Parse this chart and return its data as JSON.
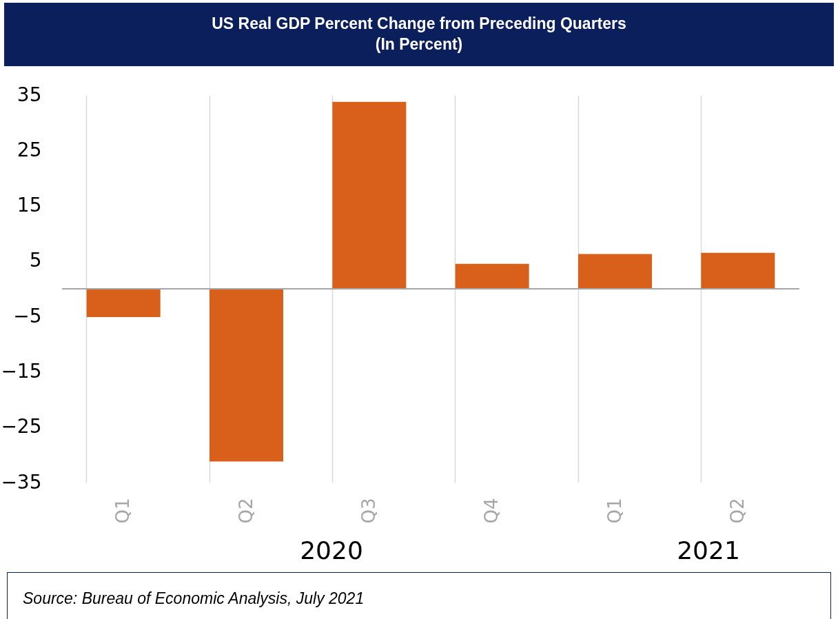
{
  "chart_data": {
    "type": "bar",
    "title": "US Real GDP Percent Change from Preceding Quarters\n(In Percent)",
    "categories": [
      "Q1",
      "Q2",
      "Q3",
      "Q4",
      "Q1",
      "Q2"
    ],
    "values": [
      -5.1,
      -31.2,
      33.8,
      4.5,
      6.3,
      6.5
    ],
    "color": "#d9601a",
    "ylim": [
      -35,
      35
    ],
    "yticks": [
      -35,
      -25,
      -15,
      -5,
      5,
      15,
      25,
      35
    ],
    "grid": "x",
    "annotations": [
      "2020",
      "2021",
      "Source: Bureau of Economic Analysis, July 2021"
    ]
  }
}
